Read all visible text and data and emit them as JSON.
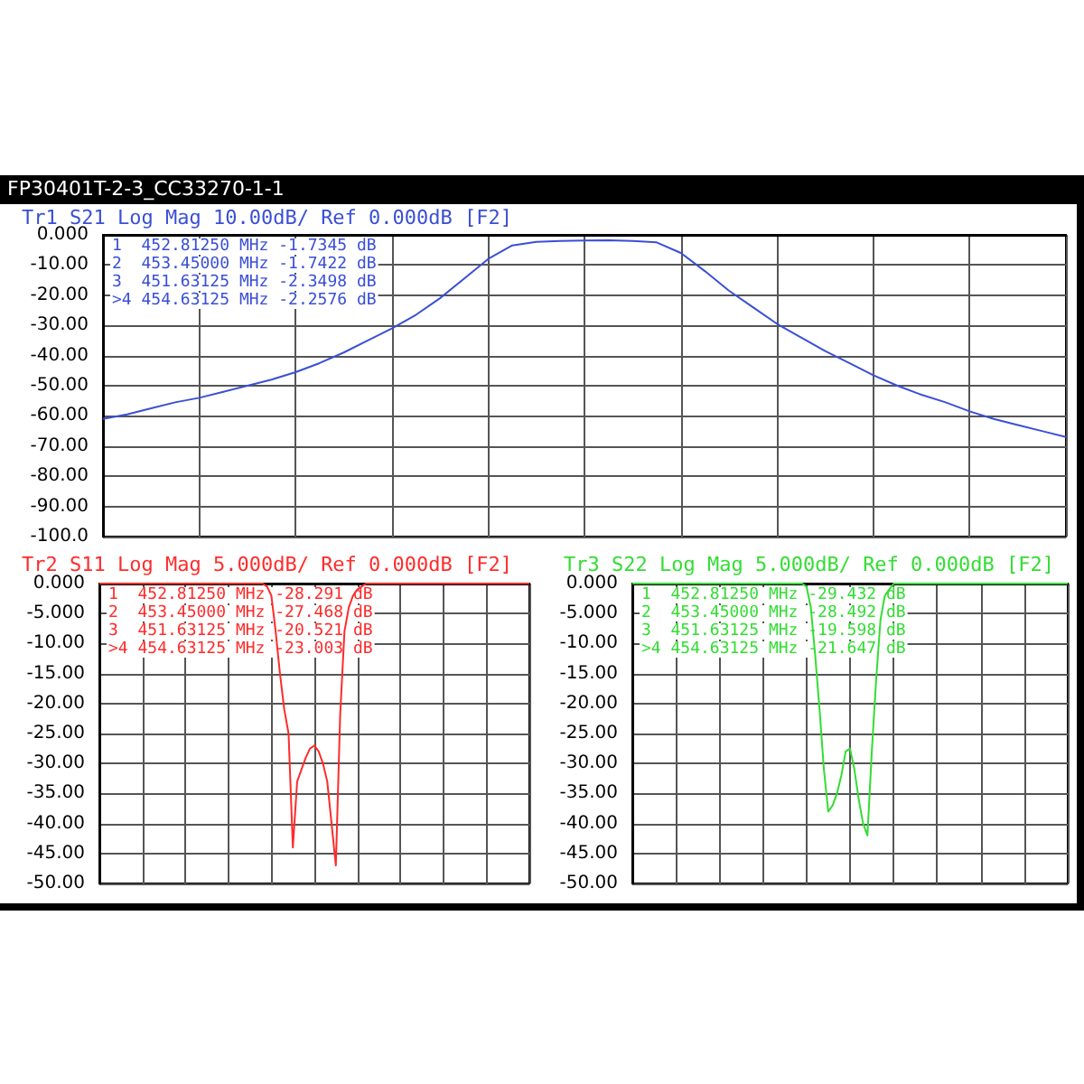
{
  "chart_data": [
    {
      "type": "line",
      "subtitle": "FP30401T-2-3_CC33270-1-1",
      "title": "Tr1 S21 Log Mag 10.00dB/ Ref 0.000dB [F2]",
      "annotations": [
        "1  452.81250 MHz -1.7345 dB",
        "2  453.45000 MHz -1.7422 dB",
        "3  451.63125 MHz -2.3498 dB",
        ">4 454.63125 MHz -2.2576 dB"
      ],
      "categories": [
        null,
        null,
        null,
        null,
        null,
        null,
        null,
        null,
        null,
        null,
        null,
        null,
        null,
        null,
        null,
        null,
        null,
        null,
        null,
        null,
        null,
        null,
        null,
        null,
        null,
        null,
        null,
        null,
        null,
        null,
        null,
        null,
        null,
        null,
        null,
        null,
        null,
        null,
        null,
        null,
        null
      ],
      "series": [
        {
          "color": "#3a4fd6",
          "values": [
            -61,
            -59.5,
            -57.5,
            -55.5,
            -54,
            -52,
            -50,
            -48,
            -45.5,
            -42.5,
            -39,
            -35,
            -31,
            -26.5,
            -21,
            -14.5,
            -8,
            -3.5,
            -2.3,
            -2,
            -1.9,
            -1.8,
            -2,
            -2.5,
            -6,
            -12,
            -18.5,
            -24,
            -29.5,
            -34,
            -38.5,
            -42.5,
            -46.5,
            -50,
            -53,
            -55.5,
            -58.5,
            -61,
            -63,
            -65,
            -67
          ]
        }
      ],
      "ylim": [
        -100,
        0
      ],
      "yticks": [
        {
          "value": 0,
          "label": "0.000"
        },
        {
          "value": -10,
          "label": "-10.00"
        },
        {
          "value": -20,
          "label": "-20.00"
        },
        {
          "value": -30,
          "label": "-30.00"
        },
        {
          "value": -40,
          "label": "-40.00"
        },
        {
          "value": -50,
          "label": "-50.00"
        },
        {
          "value": -60,
          "label": "-60.00"
        },
        {
          "value": -70,
          "label": "-70.00"
        },
        {
          "value": -80,
          "label": "-80.00"
        },
        {
          "value": -90,
          "label": "-90.00"
        },
        {
          "value": -100,
          "label": "-100.0"
        }
      ],
      "grid": true,
      "tick_labels": "y",
      "marker": "none"
    },
    {
      "type": "line",
      "title": "Tr2 S11 Log Mag 5.000dB/ Ref 0.000dB [F2]",
      "annotations": [
        "1  452.81250 MHz -28.291 dB",
        "2  453.45000 MHz -27.468 dB",
        "3  451.63125 MHz -20.521 dB",
        ">4 454.63125 MHz -23.003 dB"
      ],
      "categories": [
        null,
        null,
        null,
        null,
        null,
        null,
        null,
        null,
        null,
        null,
        null,
        null,
        null,
        null,
        null,
        null,
        null,
        null,
        null,
        null,
        null,
        null,
        null,
        null,
        null,
        null,
        null,
        null,
        null,
        null,
        null,
        null,
        null,
        null,
        null,
        null,
        null,
        null,
        null,
        null,
        null,
        null,
        null,
        null,
        null,
        null,
        null,
        null,
        null,
        null,
        null,
        null,
        null,
        null,
        null,
        null,
        null,
        null,
        null,
        null,
        null,
        null,
        null,
        null,
        null,
        null,
        null,
        null,
        null,
        null,
        null,
        null,
        null,
        null,
        null,
        null,
        null,
        null,
        null,
        null,
        null,
        null,
        null,
        null,
        null,
        null,
        null,
        null,
        null,
        null,
        null,
        null,
        null,
        null,
        null,
        null,
        null,
        null,
        null,
        null,
        null
      ],
      "series": [
        {
          "color": "#ff2b2b",
          "values": [
            0,
            0,
            0,
            0,
            0,
            0,
            0,
            0,
            0,
            0,
            0,
            0,
            0,
            0,
            0,
            0,
            0,
            0,
            0,
            0,
            0,
            0,
            0,
            0,
            0,
            0,
            0,
            0,
            0,
            0,
            0,
            0,
            0,
            0,
            0,
            0,
            0,
            0,
            0,
            -0.5,
            -2,
            -8,
            -15,
            -21,
            -25,
            -44,
            -33,
            -31,
            -29,
            -27.5,
            -27,
            -28,
            -30,
            -33,
            -40,
            -47,
            -22,
            -8,
            -4,
            -2,
            -1,
            -0.5,
            0,
            0,
            0,
            0,
            0,
            0,
            0,
            0,
            0,
            0,
            0,
            0,
            0,
            0,
            0,
            0,
            0,
            0,
            0,
            0,
            0,
            0,
            0,
            0,
            0,
            0,
            0,
            0,
            0,
            0,
            0,
            0,
            0,
            0,
            0,
            0,
            0,
            0,
            0
          ]
        }
      ],
      "ylim": [
        -50,
        0
      ],
      "yticks": [
        {
          "value": 0,
          "label": "0.000"
        },
        {
          "value": -5,
          "label": "-5.000"
        },
        {
          "value": -10,
          "label": "-10.00"
        },
        {
          "value": -15,
          "label": "-15.00"
        },
        {
          "value": -20,
          "label": "-20.00"
        },
        {
          "value": -25,
          "label": "-25.00"
        },
        {
          "value": -30,
          "label": "-30.00"
        },
        {
          "value": -35,
          "label": "-35.00"
        },
        {
          "value": -40,
          "label": "-40.00"
        },
        {
          "value": -45,
          "label": "-45.00"
        },
        {
          "value": -50,
          "label": "-50.00"
        }
      ],
      "grid": true,
      "tick_labels": "y",
      "marker": "none"
    },
    {
      "type": "line",
      "title": "Tr3 S22 Log Mag 5.000dB/ Ref 0.000dB [F2]",
      "annotations": [
        "1  452.81250 MHz -29.432 dB",
        "2  453.45000 MHz -28.492 dB",
        "3  451.63125 MHz -19.598 dB",
        ">4 454.63125 MHz -21.647 dB"
      ],
      "categories": [
        null,
        null,
        null,
        null,
        null,
        null,
        null,
        null,
        null,
        null,
        null,
        null,
        null,
        null,
        null,
        null,
        null,
        null,
        null,
        null,
        null,
        null,
        null,
        null,
        null,
        null,
        null,
        null,
        null,
        null,
        null,
        null,
        null,
        null,
        null,
        null,
        null,
        null,
        null,
        null,
        null,
        null,
        null,
        null,
        null,
        null,
        null,
        null,
        null,
        null,
        null,
        null,
        null,
        null,
        null,
        null,
        null,
        null,
        null,
        null,
        null,
        null,
        null,
        null,
        null,
        null,
        null,
        null,
        null,
        null,
        null,
        null,
        null,
        null,
        null,
        null,
        null,
        null,
        null,
        null,
        null,
        null,
        null,
        null,
        null,
        null,
        null,
        null,
        null,
        null,
        null,
        null,
        null,
        null,
        null,
        null,
        null,
        null,
        null,
        null,
        null
      ],
      "series": [
        {
          "color": "#33dd33",
          "values": [
            0,
            0,
            0,
            0,
            0,
            0,
            0,
            0,
            0,
            0,
            0,
            0,
            0,
            0,
            0,
            0,
            0,
            0,
            0,
            0,
            0,
            0,
            0,
            0,
            0,
            0,
            0,
            0,
            0,
            0,
            0,
            0,
            0,
            0,
            0,
            0,
            0,
            0,
            0,
            0,
            -0.5,
            -4,
            -12,
            -21,
            -31,
            -38,
            -37,
            -35,
            -32,
            -28,
            -27.5,
            -31,
            -36,
            -40,
            -42,
            -28,
            -16,
            -6,
            -2,
            -1,
            0,
            0,
            0,
            0,
            0,
            0,
            0,
            0,
            0,
            0,
            0,
            0,
            0,
            0,
            0,
            0,
            0,
            0,
            0,
            0,
            0,
            0,
            0,
            0,
            0,
            0,
            0,
            0,
            0,
            0,
            0,
            0,
            0,
            0,
            0,
            0,
            0,
            0,
            0,
            0,
            0
          ]
        }
      ],
      "ylim": [
        -50,
        0
      ],
      "yticks": [
        {
          "value": 0,
          "label": "0.000"
        },
        {
          "value": -5,
          "label": "-5.000"
        },
        {
          "value": -10,
          "label": "-10.00"
        },
        {
          "value": -15,
          "label": "-15.00"
        },
        {
          "value": -20,
          "label": "-20.00"
        },
        {
          "value": -25,
          "label": "-25.00"
        },
        {
          "value": -30,
          "label": "-30.00"
        },
        {
          "value": -35,
          "label": "-35.00"
        },
        {
          "value": -40,
          "label": "-40.00"
        },
        {
          "value": -45,
          "label": "-45.00"
        },
        {
          "value": -50,
          "label": "-50.00"
        }
      ],
      "grid": true,
      "tick_labels": "y",
      "marker": "none"
    }
  ]
}
